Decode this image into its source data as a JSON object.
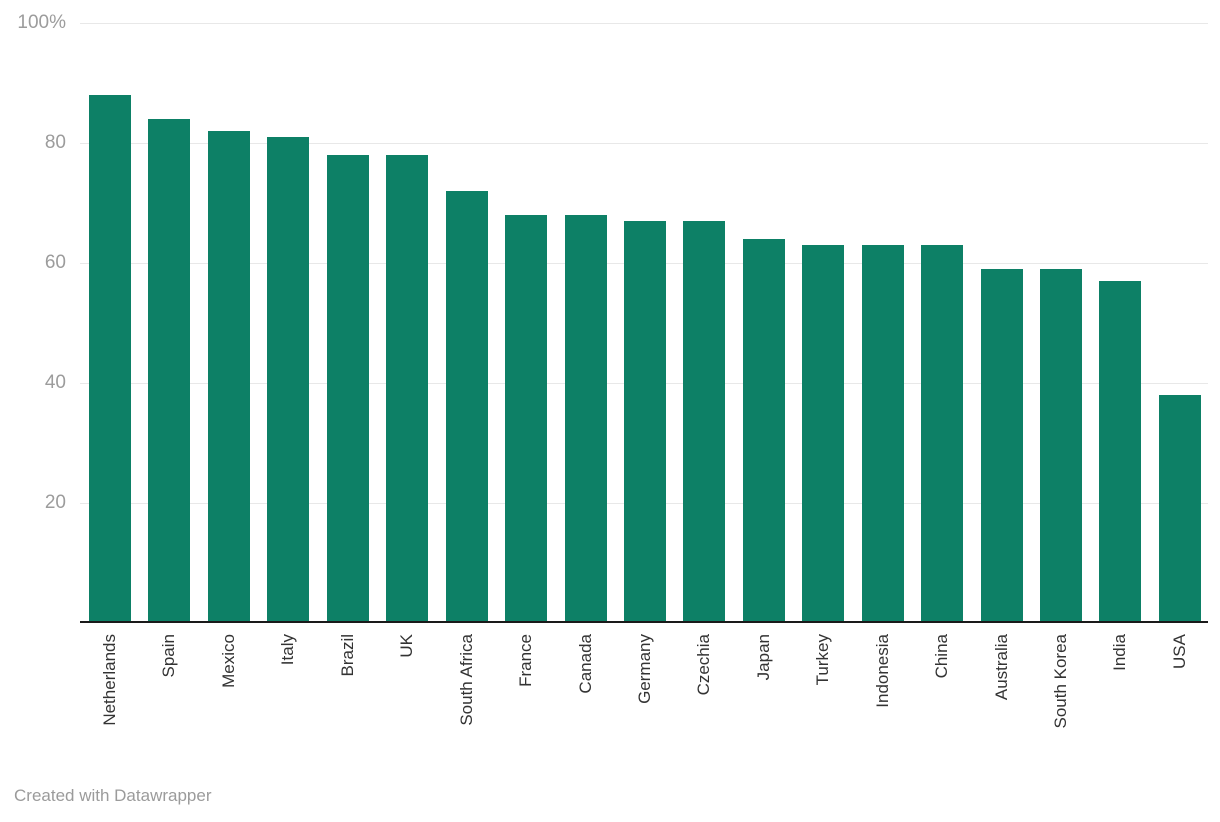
{
  "chart_data": {
    "type": "bar",
    "title": "",
    "xlabel": "",
    "ylabel": "",
    "categories": [
      "Netherlands",
      "Spain",
      "Mexico",
      "Italy",
      "Brazil",
      "UK",
      "South Africa",
      "France",
      "Canada",
      "Germany",
      "Czechia",
      "Japan",
      "Turkey",
      "Indonesia",
      "China",
      "Australia",
      "South Korea",
      "India",
      "USA"
    ],
    "values": [
      88,
      84,
      82,
      81,
      78,
      78,
      72,
      68,
      68,
      67,
      67,
      64,
      63,
      63,
      63,
      59,
      59,
      57,
      38
    ],
    "unit": "%",
    "ylim": [
      0,
      100
    ],
    "y_ticks": [
      {
        "value": 100,
        "label": "100%"
      },
      {
        "value": 80,
        "label": "80"
      },
      {
        "value": 60,
        "label": "60"
      },
      {
        "value": 40,
        "label": "40"
      },
      {
        "value": 20,
        "label": "20"
      }
    ],
    "grid": "horizontal-on",
    "legend": "none",
    "colors": {
      "bar": "#0d8066",
      "gridline": "#e8e8e8",
      "axis_line": "#1a1a1a",
      "y_tick_label": "#9c9c9c",
      "category_label": "#333333",
      "credit_text": "#9b9b9b"
    }
  },
  "footer": {
    "credit": "Created with Datawrapper"
  }
}
